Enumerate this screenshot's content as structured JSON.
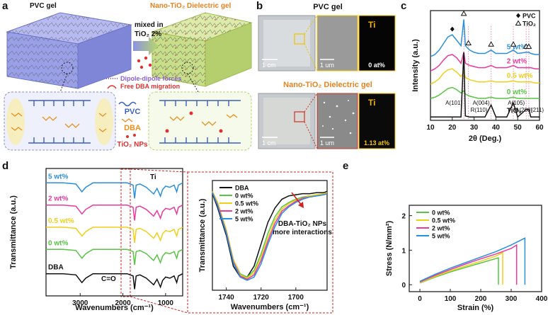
{
  "diagram": {
    "panel_a": {
      "label": "a",
      "left_title": "PVC gel",
      "right_title": "Nano-TiO₂ Dielectric gel",
      "arrow_text": [
        "mixed in",
        "TiO₂ 2%"
      ],
      "legend": [
        "Dipole-dipole forces",
        "Free DBA migration"
      ],
      "key": [
        "PVC",
        "DBA",
        "TiO₂ NPs"
      ]
    },
    "panel_b": {
      "label": "b",
      "rows": [
        {
          "title": "PVC gel",
          "photo_scale": "1 cm",
          "sem_scale": "1 um",
          "element": "Ti",
          "content": "0 at%"
        },
        {
          "title": "Nano-TiO₂ Dielectric gel",
          "photo_scale": "1 cm",
          "sem_scale": "1 um",
          "element": "Ti",
          "content": "1.13 at%"
        }
      ]
    }
  },
  "chart_data": [
    {
      "type": "line",
      "panel_label": "c",
      "xlabel": "2θ (Deg.)",
      "ylabel": "Intensity (a.u.)",
      "x": [
        10,
        12,
        14,
        16,
        18,
        20,
        22,
        24,
        25.3,
        26,
        28,
        30,
        32,
        35,
        37.8,
        40,
        45,
        48,
        50,
        53.9,
        55.1,
        56,
        58,
        60
      ],
      "xlim": [
        10,
        60
      ],
      "xticks": [
        10,
        20,
        30,
        40,
        50,
        60
      ],
      "ylim": [
        0,
        100
      ],
      "series": [
        {
          "name": "5 wt%",
          "color": "#2a8fdc",
          "values": [
            58,
            60,
            64,
            70,
            76,
            78,
            73,
            68,
            92,
            68,
            64,
            62,
            61,
            61,
            64,
            61,
            61,
            64,
            61,
            62,
            62,
            61,
            60,
            60
          ]
        },
        {
          "name": "2 wt%",
          "color": "#e93a9e",
          "values": [
            45,
            47,
            50,
            55,
            59,
            60,
            57,
            52,
            62,
            52,
            50,
            49,
            48,
            48,
            50,
            48,
            48,
            50,
            48,
            48,
            48,
            48,
            47,
            47
          ]
        },
        {
          "name": "0.5 wt%",
          "color": "#f0cf1a",
          "values": [
            33,
            35,
            38,
            43,
            46,
            47,
            44,
            40,
            44,
            39,
            37,
            36,
            35,
            35,
            36,
            35,
            35,
            36,
            35,
            35,
            35,
            35,
            34,
            34
          ]
        },
        {
          "name": "0 wt%",
          "color": "#57c542",
          "values": [
            20,
            21,
            23,
            26,
            29,
            30,
            28,
            25,
            27,
            24,
            22,
            21,
            20,
            20,
            21,
            20,
            20,
            21,
            20,
            20,
            20,
            20,
            20,
            20
          ]
        },
        {
          "name": "TiO₂",
          "color": "#111111",
          "values": [
            3,
            3,
            3,
            3,
            3,
            3,
            3,
            3,
            62,
            4,
            3,
            3,
            3,
            3,
            14,
            3,
            3,
            16,
            3,
            10,
            10,
            3,
            3,
            3
          ]
        }
      ],
      "marker_legend": [
        {
          "symbol": "diamond",
          "label": "PVC"
        },
        {
          "symbol": "triangle",
          "label": "TiO₂"
        }
      ],
      "peak_markers": [
        {
          "symbol": "diamond",
          "x": 20
        },
        {
          "symbol": "triangle",
          "x": 25.3
        },
        {
          "symbol": "triangle",
          "x": 27.4
        },
        {
          "symbol": "triangle",
          "x": 37.8
        },
        {
          "symbol": "triangle",
          "x": 48
        },
        {
          "symbol": "triangle",
          "x": 53.9
        },
        {
          "symbol": "triangle",
          "x": 55.1
        }
      ],
      "annotations": [
        {
          "text": "A(101)",
          "x": 25.3
        },
        {
          "text": "R(110)",
          "x": 27.4
        },
        {
          "text": "A(004)",
          "x": 37.8
        },
        {
          "text": "A(200)",
          "x": 48
        },
        {
          "text": "A(105)",
          "x": 53.9
        },
        {
          "text": "(211)",
          "x": 55.1
        }
      ]
    },
    {
      "type": "line",
      "panel_label": "d",
      "xlabel": "Wavenumbers (cm⁻¹)",
      "ylabel": "Transmittance (a.u.)",
      "x": [
        3800,
        3400,
        3100,
        2960,
        2870,
        2700,
        2200,
        1900,
        1760,
        1725,
        1690,
        1600,
        1450,
        1280,
        1200,
        1120,
        1070,
        1000,
        900,
        800,
        740,
        700,
        600
      ],
      "xlim": [
        3800,
        600
      ],
      "xticks": [
        3000,
        2000,
        1000
      ],
      "ylim": [
        -10,
        105
      ],
      "series": [
        {
          "name": "5 wt%",
          "color": "#2a8fdc",
          "values": [
            92,
            92,
            91,
            84,
            88,
            92,
            92,
            92,
            90,
            78,
            90,
            91,
            88,
            82,
            87,
            80,
            86,
            89,
            88,
            90,
            84,
            90,
            92
          ]
        },
        {
          "name": "2 wt%",
          "color": "#e93a9e",
          "values": [
            72,
            72,
            71,
            64,
            68,
            72,
            72,
            72,
            70,
            58,
            70,
            71,
            68,
            62,
            67,
            60,
            66,
            69,
            68,
            70,
            64,
            70,
            72
          ]
        },
        {
          "name": "0.5 wt%",
          "color": "#f0cf1a",
          "values": [
            52,
            52,
            51,
            44,
            48,
            52,
            52,
            52,
            50,
            38,
            50,
            51,
            48,
            42,
            47,
            40,
            46,
            49,
            48,
            50,
            44,
            50,
            52
          ]
        },
        {
          "name": "0 wt%",
          "color": "#57c542",
          "values": [
            32,
            32,
            31,
            24,
            28,
            32,
            32,
            32,
            30,
            18,
            30,
            31,
            28,
            22,
            27,
            20,
            26,
            29,
            28,
            30,
            24,
            30,
            32
          ]
        },
        {
          "name": "DBA",
          "color": "#111111",
          "values": [
            10,
            10,
            9,
            2,
            6,
            10,
            10,
            10,
            8,
            -4,
            8,
            9,
            6,
            0,
            5,
            -2,
            4,
            7,
            6,
            8,
            2,
            8,
            10
          ]
        }
      ],
      "annotations": [
        "Ti",
        "C=O"
      ]
    },
    {
      "type": "line",
      "xlabel": "Wavenumbers (cm⁻¹)",
      "ylabel": "Transmittance (a.u.)",
      "x": [
        1748,
        1745,
        1740,
        1736,
        1732,
        1728,
        1724,
        1720,
        1716,
        1712,
        1708,
        1704,
        1700,
        1696,
        1692,
        1688,
        1684,
        1682
      ],
      "xlim": [
        1748,
        1682
      ],
      "xticks": [
        1740,
        1720,
        1700
      ],
      "ylim": [
        0,
        100
      ],
      "legend": "upper left",
      "series": [
        {
          "name": "DBA",
          "color": "#111111",
          "values": [
            88,
            75,
            50,
            22,
            12,
            12,
            22,
            42,
            62,
            75,
            83,
            86,
            87,
            88,
            88,
            89,
            89,
            90
          ]
        },
        {
          "name": "0 wt%",
          "color": "#57c542",
          "values": [
            90,
            80,
            55,
            28,
            15,
            12,
            18,
            33,
            52,
            67,
            76,
            80,
            83,
            85,
            86,
            87,
            88,
            89
          ]
        },
        {
          "name": "0.5 wt%",
          "color": "#f0cf1a",
          "values": [
            90,
            80,
            55,
            28,
            14,
            11,
            16,
            30,
            48,
            64,
            74,
            79,
            82,
            84,
            86,
            87,
            88,
            89
          ]
        },
        {
          "name": "2 wt%",
          "color": "#e93a9e",
          "values": [
            89,
            78,
            53,
            26,
            13,
            10,
            14,
            27,
            45,
            61,
            72,
            77,
            81,
            84,
            85,
            86,
            87,
            88
          ]
        },
        {
          "name": "5 wt%",
          "color": "#2a8fdc",
          "values": [
            89,
            77,
            52,
            25,
            12,
            9,
            12,
            24,
            42,
            58,
            70,
            76,
            80,
            83,
            85,
            86,
            87,
            88
          ]
        }
      ],
      "annotations": [
        "DBA-TiO₂ NPs",
        "more interactions"
      ]
    },
    {
      "type": "line",
      "panel_label": "e",
      "xlabel": "Strain (%)",
      "ylabel": "Stress (N/mm²)",
      "xlim": [
        -35,
        400
      ],
      "xticks": [
        0,
        100,
        200,
        300,
        400
      ],
      "ylim": [
        -0.2,
        2.3
      ],
      "yticks": [
        0,
        1,
        2
      ],
      "legend": "upper left",
      "series": [
        {
          "name": "0 wt%",
          "color": "#57c542",
          "x": [
            0,
            50,
            100,
            150,
            200,
            258,
            258
          ],
          "values": [
            0.05,
            0.22,
            0.37,
            0.5,
            0.63,
            0.78,
            0
          ]
        },
        {
          "name": "0.5 wt%",
          "color": "#f0cf1a",
          "x": [
            0,
            50,
            100,
            150,
            200,
            250,
            272,
            272
          ],
          "values": [
            0.06,
            0.24,
            0.4,
            0.54,
            0.68,
            0.83,
            0.93,
            0
          ]
        },
        {
          "name": "2 wt%",
          "color": "#e93a9e",
          "x": [
            0,
            50,
            100,
            150,
            200,
            250,
            300,
            318,
            318
          ],
          "values": [
            0.08,
            0.27,
            0.44,
            0.6,
            0.75,
            0.89,
            1.05,
            1.15,
            0
          ]
        },
        {
          "name": "5 wt%",
          "color": "#2a8fdc",
          "x": [
            0,
            50,
            100,
            150,
            200,
            250,
            300,
            345,
            345
          ],
          "values": [
            0.1,
            0.3,
            0.48,
            0.64,
            0.8,
            0.96,
            1.15,
            1.35,
            0
          ]
        }
      ]
    }
  ]
}
